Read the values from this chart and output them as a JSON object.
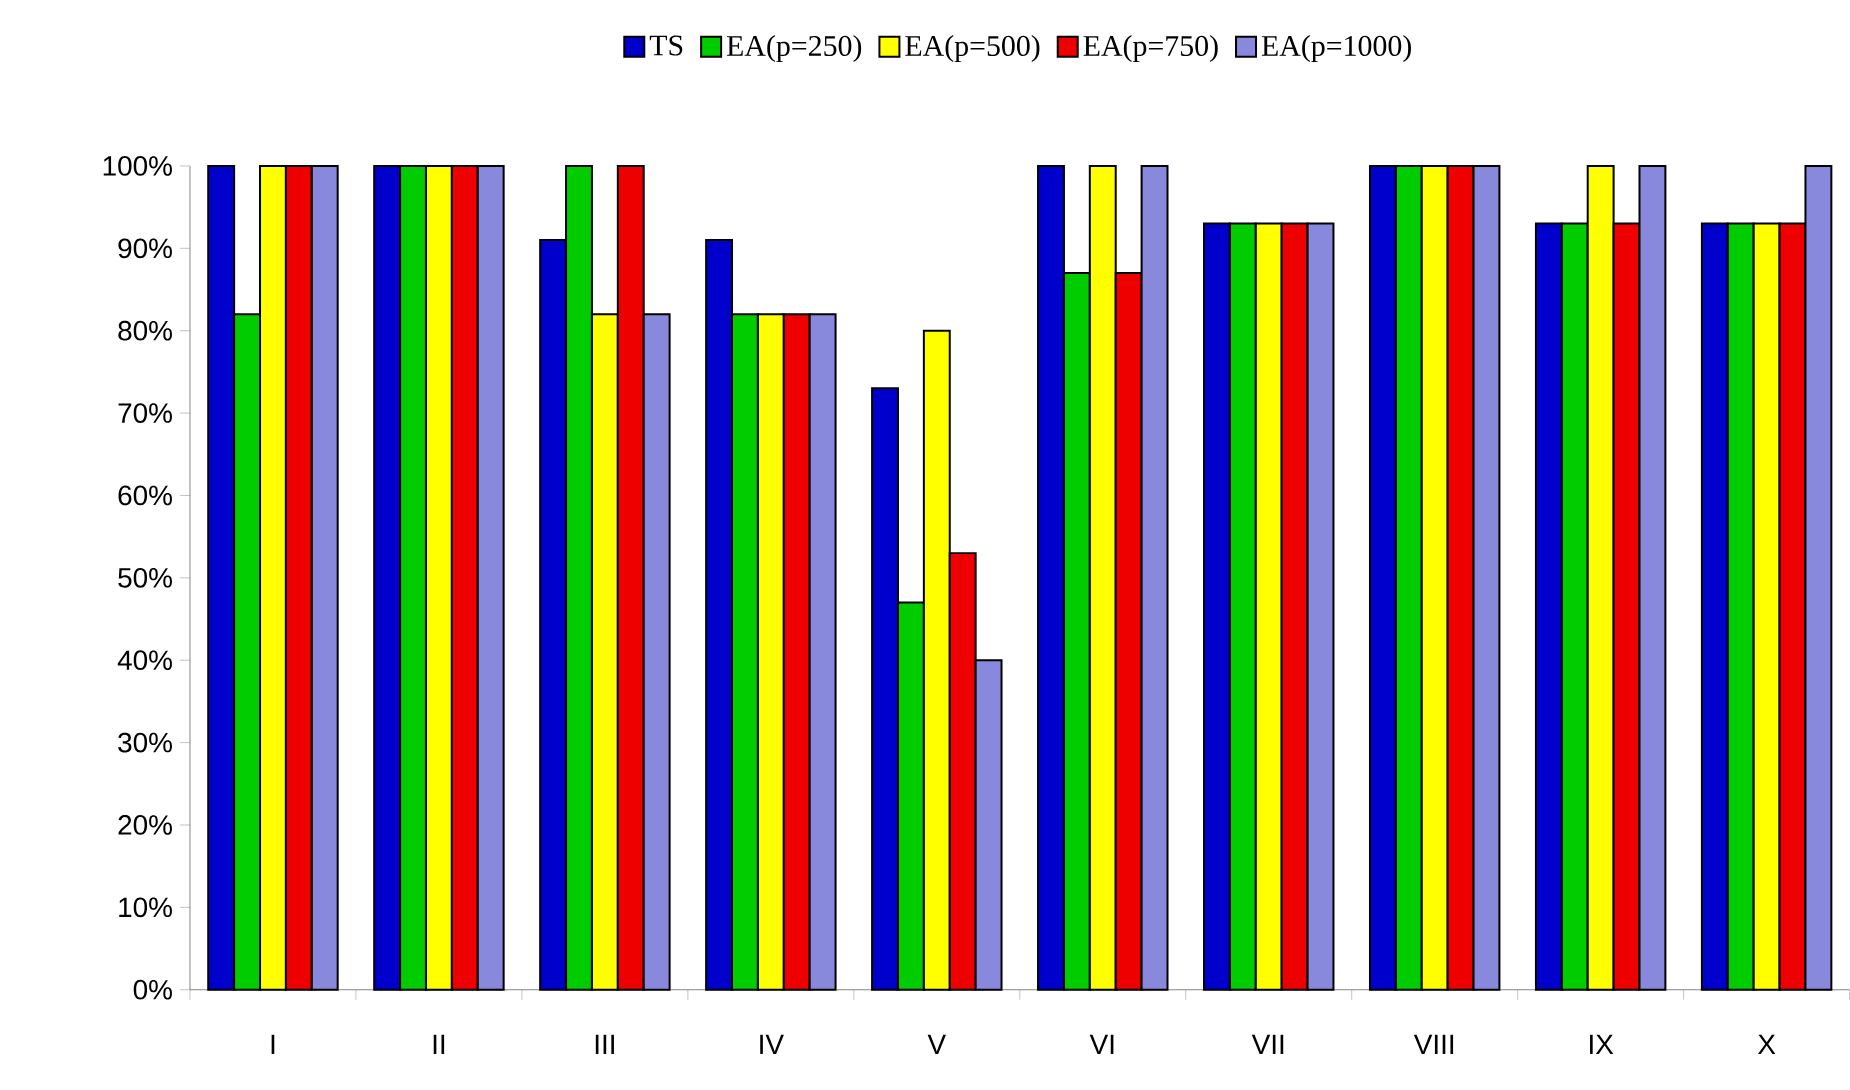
{
  "chart_data": {
    "type": "bar",
    "categories": [
      "I",
      "II",
      "III",
      "IV",
      "V",
      "VI",
      "VII",
      "VIII",
      "IX",
      "X"
    ],
    "series": [
      {
        "name": "TS",
        "color": "#0000cc",
        "values": [
          100,
          100,
          91,
          91,
          73,
          100,
          93,
          100,
          93,
          93
        ]
      },
      {
        "name": "EA(p=250)",
        "color": "#00cc00",
        "values": [
          82,
          100,
          100,
          82,
          47,
          87,
          93,
          100,
          93,
          93
        ]
      },
      {
        "name": "EA(p=500)",
        "color": "#ffff00",
        "values": [
          100,
          100,
          82,
          82,
          80,
          100,
          93,
          100,
          100,
          93
        ]
      },
      {
        "name": "EA(p=750)",
        "color": "#ee0000",
        "values": [
          100,
          100,
          100,
          82,
          53,
          87,
          93,
          100,
          93,
          93
        ]
      },
      {
        "name": "EA(p=1000)",
        "color": "#8888dd",
        "values": [
          100,
          100,
          82,
          82,
          40,
          100,
          93,
          100,
          100,
          100
        ]
      }
    ],
    "ylim": [
      0,
      100
    ],
    "yticks": [
      {
        "value": 0,
        "label": "0%"
      },
      {
        "value": 10,
        "label": "10%"
      },
      {
        "value": 20,
        "label": "20%"
      },
      {
        "value": 30,
        "label": "30%"
      },
      {
        "value": 40,
        "label": "40%"
      },
      {
        "value": 50,
        "label": "50%"
      },
      {
        "value": 60,
        "label": "60%"
      },
      {
        "value": 70,
        "label": "70%"
      },
      {
        "value": 80,
        "label": "80%"
      },
      {
        "value": 90,
        "label": "90%"
      },
      {
        "value": 100,
        "label": "100%"
      }
    ],
    "legend": "top"
  }
}
